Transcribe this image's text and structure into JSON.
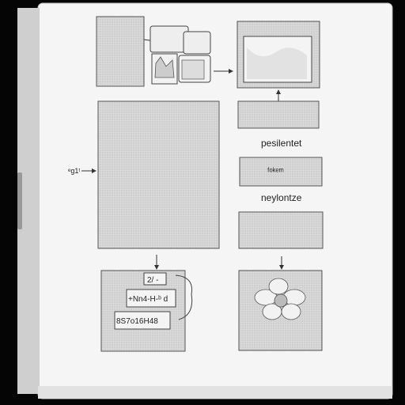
{
  "labels": {
    "left_arrow_label": "ᵉg1ᵗ",
    "right_label_1": "pesilentet",
    "right_label_2": "neylontze",
    "box_top_right_text": "ᶠᵒᵏᵉᵐ"
  },
  "bottom_left_panel": {
    "tag_1": "2/ -",
    "tag_2": "+Nn4-H-ᵇ d",
    "tag_3": "8S7o16H48"
  },
  "colors": {
    "background": "#050505",
    "page": "#f7f7f7",
    "panel_fill": "#d6d6d6",
    "panel_stroke": "#555555",
    "text": "#222222"
  }
}
